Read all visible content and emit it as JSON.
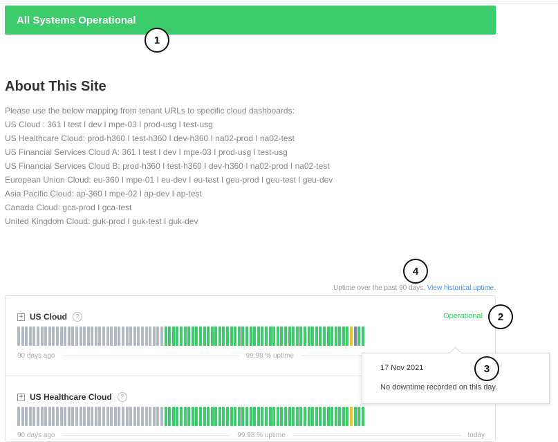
{
  "banner": {
    "text": "All Systems Operational"
  },
  "callouts": [
    "1",
    "2",
    "3",
    "4"
  ],
  "about": {
    "title": "About This Site",
    "lines": [
      "Please use the below mapping from tenant URLs to specific cloud dashboards:",
      "US Cloud : 361 I test I dev I mpe-03 I prod-usg I test-usg",
      "US Healthcare Cloud: prod-h360 I test-h360 I dev-h360 I na02-prod I na02-test",
      "US Financial Services Cloud A: 361 I test I dev I mpe-03 I prod-usg I test-usg",
      "US Financial Services Cloud B: prod-h360 I test-h360 I dev-h360 I na02-prod I na02-test",
      "European Union Cloud: eu-360 I mpe-01 I eu-dev I eu-test I geu-prod I geu-test I geu-dev",
      "Asia Pacific Cloud: ap-360 I mpe-02 I ap-dev I ap-test",
      "Canada Cloud: gca-prod I gca-test",
      "United Kingdom Cloud: guk-prod I guk-test I guk-dev"
    ]
  },
  "uptime_note": {
    "text": "Uptime over the past 90 days.",
    "link": "View historical uptime."
  },
  "components": [
    {
      "name": "US Cloud",
      "status": "Operational",
      "left_label": "90 days ago",
      "uptime": "99.98 % uptime",
      "right_label": "",
      "bars": {
        "total": 90,
        "no_data": 38,
        "degraded_index": 86,
        "highlight_index": 87
      }
    },
    {
      "name": "US Healthcare Cloud",
      "status": "",
      "left_label": "90 days ago",
      "uptime": "99.98 % uptime",
      "right_label": "today",
      "bars": {
        "total": 90,
        "no_data": 38,
        "degraded_index": 86,
        "highlight_index": -1
      }
    }
  ],
  "colors": {
    "operational": "#3dcc6b",
    "no_data": "#b3bac5",
    "degraded": "#e6c620",
    "highlight": "#7a86b8"
  },
  "tooltip": {
    "date": "17 Nov 2021",
    "message": "No downtime recorded on this day."
  }
}
